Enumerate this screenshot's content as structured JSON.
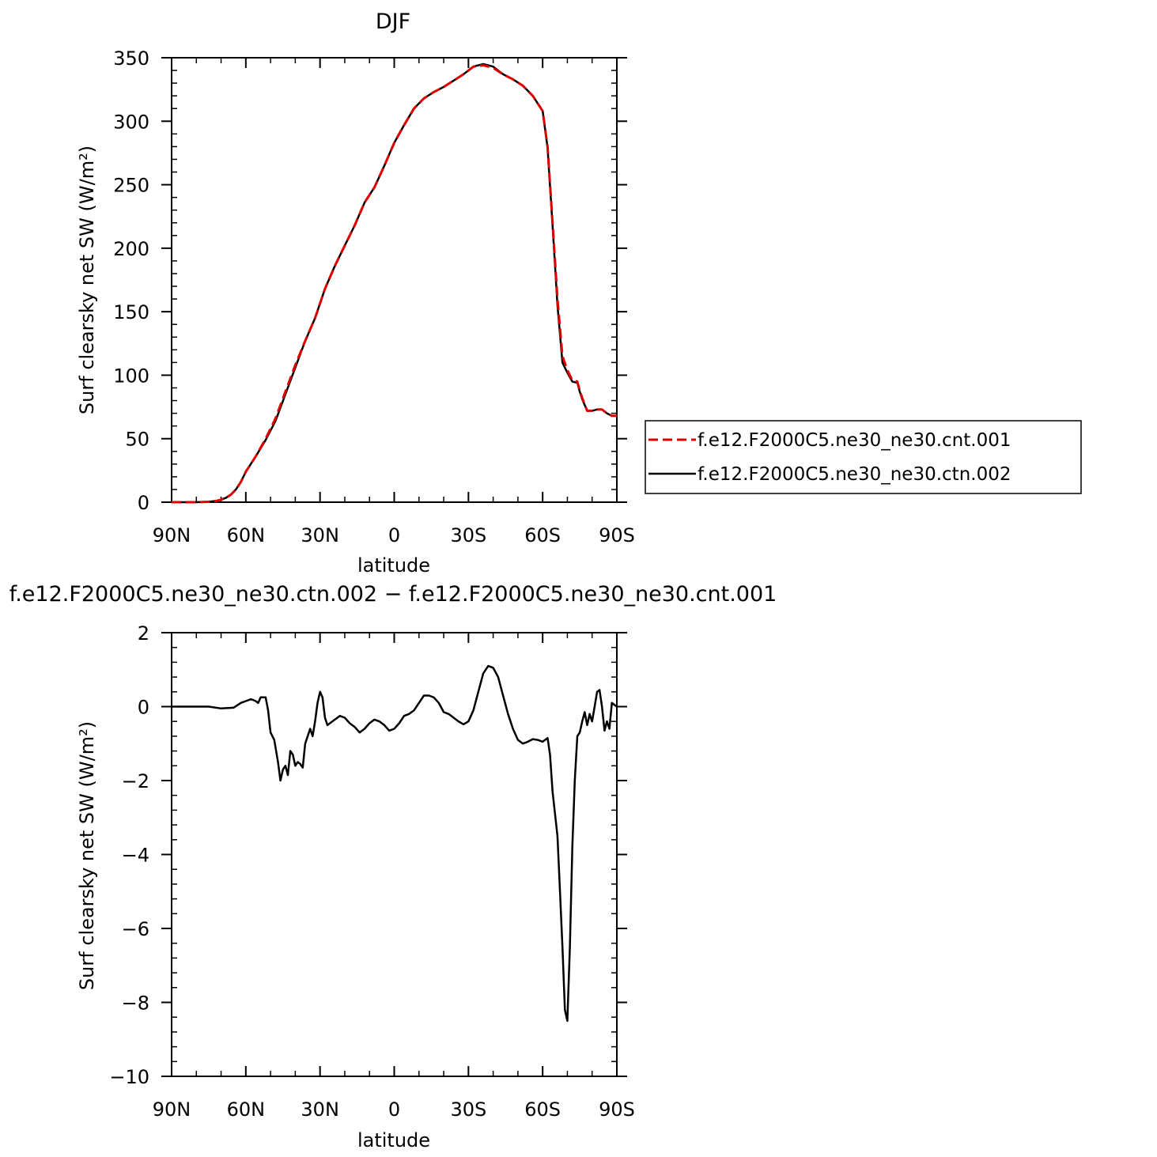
{
  "chart_data": [
    {
      "type": "line",
      "title": "DJF",
      "xlabel": "latitude",
      "ylabel": "Surf clearsky net SW (W/m²)",
      "xlim": [
        90,
        -90
      ],
      "ylim": [
        0,
        350
      ],
      "xticks": [
        {
          "value": 90,
          "label": "90N"
        },
        {
          "value": 60,
          "label": "60N"
        },
        {
          "value": 30,
          "label": "30N"
        },
        {
          "value": 0,
          "label": "0"
        },
        {
          "value": -30,
          "label": "30S"
        },
        {
          "value": -60,
          "label": "60S"
        },
        {
          "value": -90,
          "label": "90S"
        }
      ],
      "yticks": [
        {
          "value": 0,
          "label": "0"
        },
        {
          "value": 50,
          "label": "50"
        },
        {
          "value": 100,
          "label": "100"
        },
        {
          "value": 150,
          "label": "150"
        },
        {
          "value": 200,
          "label": "200"
        },
        {
          "value": 250,
          "label": "250"
        },
        {
          "value": 300,
          "label": "300"
        },
        {
          "value": 350,
          "label": "350"
        }
      ],
      "legend_position": "right",
      "x": [
        90,
        85,
        80,
        75,
        72,
        70,
        68,
        66,
        64,
        62,
        60,
        58,
        56,
        52,
        48,
        44,
        40,
        36,
        32,
        28,
        24,
        20,
        16,
        12,
        8,
        4,
        0,
        -4,
        -8,
        -12,
        -16,
        -20,
        -24,
        -28,
        -32,
        -36,
        -40,
        -44,
        -48,
        -52,
        -56,
        -60,
        -62,
        -64,
        -66,
        -68,
        -70,
        -72,
        -74,
        -75,
        -76,
        -78,
        -80,
        -82,
        -84,
        -86,
        -88,
        -90
      ],
      "series": [
        {
          "name": "f.e12.F2000C5.ne30_ne30.cnt.001",
          "color": "#e00000",
          "dash": "dashed",
          "values": [
            0,
            0,
            0,
            0.3,
            1,
            2,
            3.5,
            6,
            10,
            16,
            24,
            30,
            36,
            50,
            66,
            87,
            108,
            127,
            145,
            168,
            186,
            202,
            218,
            236,
            248,
            265,
            283,
            297,
            310,
            318,
            323,
            327,
            332,
            337,
            343,
            344,
            342,
            337,
            333,
            328,
            320,
            308,
            280,
            220,
            160,
            115,
            104,
            96,
            95,
            88,
            82,
            72,
            72,
            73,
            73,
            70,
            68,
            68
          ]
        },
        {
          "name": "f.e12.F2000C5.ne30_ne30.ctn.002",
          "color": "#000000",
          "dash": "solid",
          "values": [
            0,
            0,
            0,
            0.3,
            1,
            2,
            3.5,
            6,
            10,
            16,
            24,
            30,
            36,
            49,
            64,
            85,
            106,
            127,
            145,
            168,
            186,
            202,
            218,
            236,
            248,
            265,
            283,
            297,
            310,
            318,
            323,
            327,
            332,
            337,
            343,
            345,
            343,
            337,
            333,
            328,
            320,
            308,
            279,
            218,
            155,
            110,
            102,
            95,
            94,
            87,
            81,
            72,
            72,
            73,
            73,
            70,
            68,
            68
          ]
        }
      ]
    },
    {
      "type": "line",
      "title": "f.e12.F2000C5.ne30_ne30.ctn.002 − f.e12.F2000C5.ne30_ne30.cnt.001",
      "xlabel": "latitude",
      "ylabel": "Surf clearsky net SW (W/m²)",
      "xlim": [
        90,
        -90
      ],
      "ylim": [
        -10,
        2
      ],
      "xticks": [
        {
          "value": 90,
          "label": "90N"
        },
        {
          "value": 60,
          "label": "60N"
        },
        {
          "value": 30,
          "label": "30N"
        },
        {
          "value": 0,
          "label": "0"
        },
        {
          "value": -30,
          "label": "30S"
        },
        {
          "value": -60,
          "label": "60S"
        },
        {
          "value": -90,
          "label": "90S"
        }
      ],
      "yticks": [
        {
          "value": 2,
          "label": "2"
        },
        {
          "value": 0,
          "label": "0"
        },
        {
          "value": -2,
          "label": "−2"
        },
        {
          "value": -4,
          "label": "−4"
        },
        {
          "value": -6,
          "label": "−6"
        },
        {
          "value": -8,
          "label": "−8"
        },
        {
          "value": -10,
          "label": "−10"
        }
      ],
      "x": [
        90,
        80,
        75,
        70,
        65,
        62,
        60,
        58,
        57,
        56,
        55,
        54,
        52,
        51,
        50,
        48.5,
        47,
        46,
        45,
        44,
        43,
        42,
        41,
        40,
        39,
        38,
        37,
        36,
        34,
        33,
        32,
        31,
        30,
        29,
        28,
        27,
        26,
        24,
        22,
        20,
        18,
        16,
        14,
        12,
        10,
        8,
        6,
        4,
        2,
        0,
        -2,
        -4,
        -6,
        -8,
        -10,
        -12,
        -14,
        -16,
        -18,
        -20,
        -22,
        -24,
        -26,
        -28,
        -30,
        -32,
        -34,
        -36,
        -38,
        -40,
        -42,
        -44,
        -46,
        -48,
        -50,
        -52,
        -54,
        -56,
        -58,
        -60,
        -62,
        -63,
        -64,
        -65,
        -66,
        -67,
        -68,
        -69,
        -70,
        -71,
        -72,
        -73,
        -74,
        -75,
        -76,
        -77,
        -78,
        -79,
        -80,
        -81,
        -82,
        -83,
        -84,
        -85,
        -86,
        -87,
        -88,
        -89,
        -90
      ],
      "series": [
        {
          "name": "",
          "color": "#000000",
          "dash": "solid",
          "values": [
            0,
            0,
            0,
            -0.05,
            -0.03,
            0.1,
            0.15,
            0.2,
            0.18,
            0.15,
            0.1,
            0.25,
            0.25,
            -0.1,
            -0.7,
            -0.9,
            -1.5,
            -2.0,
            -1.7,
            -1.6,
            -1.85,
            -1.2,
            -1.3,
            -1.6,
            -1.5,
            -1.55,
            -1.65,
            -1.0,
            -0.6,
            -0.8,
            -0.4,
            0.1,
            0.4,
            0.25,
            -0.3,
            -0.5,
            -0.45,
            -0.35,
            -0.25,
            -0.3,
            -0.45,
            -0.55,
            -0.7,
            -0.6,
            -0.45,
            -0.35,
            -0.4,
            -0.5,
            -0.65,
            -0.6,
            -0.45,
            -0.25,
            -0.2,
            -0.1,
            0.1,
            0.3,
            0.3,
            0.25,
            0.1,
            -0.15,
            -0.2,
            -0.3,
            -0.4,
            -0.48,
            -0.4,
            -0.1,
            0.4,
            0.9,
            1.1,
            1.05,
            0.8,
            0.3,
            -0.2,
            -0.6,
            -0.9,
            -1.0,
            -0.95,
            -0.88,
            -0.9,
            -0.95,
            -0.85,
            -1.3,
            -2.3,
            -2.9,
            -3.5,
            -5.0,
            -6.5,
            -8.2,
            -8.5,
            -6.5,
            -3.8,
            -2.0,
            -0.8,
            -0.7,
            -0.4,
            -0.15,
            -0.5,
            -0.2,
            -0.4,
            0.0,
            0.4,
            0.45,
            0.0,
            -0.65,
            -0.4,
            -0.6,
            0.1,
            0.05,
            0.0
          ]
        }
      ]
    }
  ]
}
